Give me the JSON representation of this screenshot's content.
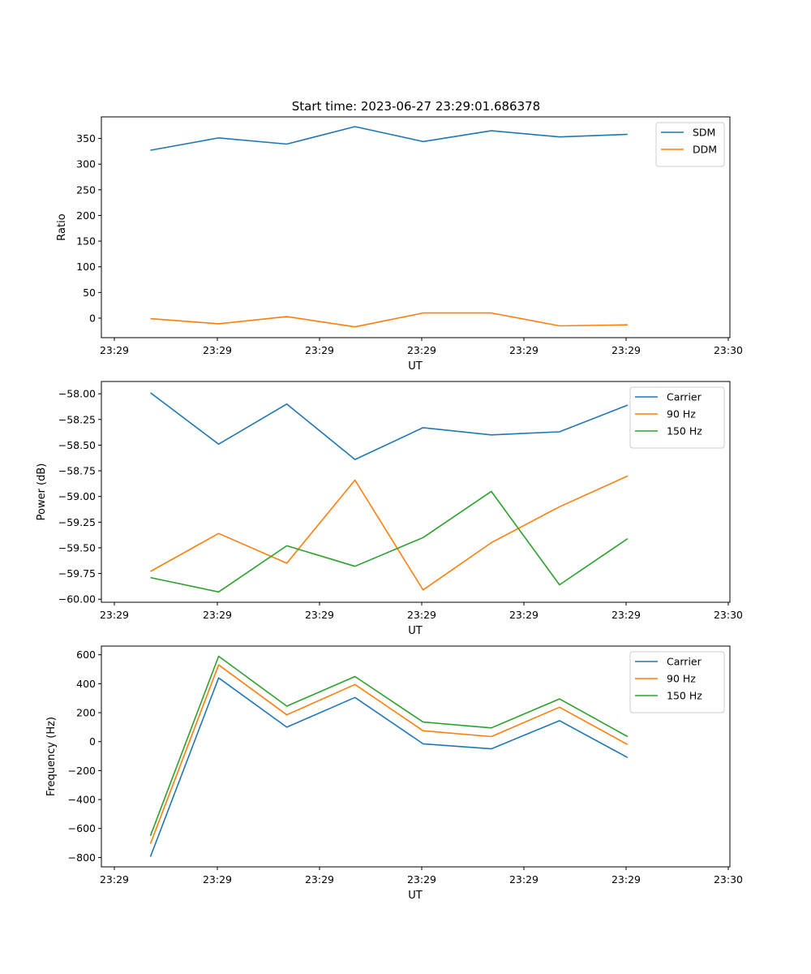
{
  "figure": {
    "title": "Start time: 2023-06-27 23:29:01.686378"
  },
  "chart_data": [
    {
      "type": "line",
      "xlabel": "UT",
      "ylabel": "Ratio",
      "x_tick_labels": [
        "23:29",
        "23:29",
        "23:29",
        "23:29",
        "23:29",
        "23:29",
        "23:30"
      ],
      "xlim": [
        -0.72,
        8.5
      ],
      "ylim": [
        -38,
        392
      ],
      "y_ticks": [
        0,
        50,
        100,
        150,
        200,
        250,
        300,
        350
      ],
      "y_tick_labels": [
        "0",
        "50",
        "100",
        "150",
        "200",
        "250",
        "300",
        "350"
      ],
      "legend_position": "top-right",
      "x": [
        0,
        1,
        2,
        3,
        4,
        5,
        6,
        7
      ],
      "series": [
        {
          "name": "SDM",
          "color": "#1f77b4",
          "values": [
            327,
            351,
            339,
            373,
            344,
            365,
            353,
            358
          ]
        },
        {
          "name": "DDM",
          "color": "#ff7f0e",
          "values": [
            -1,
            -11,
            3,
            -17,
            10,
            10,
            -15,
            -13
          ]
        }
      ]
    },
    {
      "type": "line",
      "xlabel": "UT",
      "ylabel": "Power (dB)",
      "x_tick_labels": [
        "23:29",
        "23:29",
        "23:29",
        "23:29",
        "23:29",
        "23:29",
        "23:30"
      ],
      "xlim": [
        -0.72,
        8.5
      ],
      "ylim": [
        -60.03,
        -57.88
      ],
      "y_ticks": [
        -60.0,
        -59.75,
        -59.5,
        -59.25,
        -59.0,
        -58.75,
        -58.5,
        -58.25,
        -58.0
      ],
      "y_tick_labels": [
        "−60.00",
        "−59.75",
        "−59.50",
        "−59.25",
        "−59.00",
        "−58.75",
        "−58.50",
        "−58.25",
        "−58.00"
      ],
      "legend_position": "top-right",
      "x": [
        0,
        1,
        2,
        3,
        4,
        5,
        6,
        7
      ],
      "series": [
        {
          "name": "Carrier",
          "color": "#1f77b4",
          "values": [
            -57.99,
            -58.49,
            -58.1,
            -58.64,
            -58.33,
            -58.4,
            -58.37,
            -58.11
          ]
        },
        {
          "name": "90 Hz",
          "color": "#ff7f0e",
          "values": [
            -59.73,
            -59.36,
            -59.65,
            -58.84,
            -59.91,
            -59.45,
            -59.1,
            -58.8
          ]
        },
        {
          "name": "150 Hz",
          "color": "#2ca02c",
          "values": [
            -59.79,
            -59.93,
            -59.48,
            -59.68,
            -59.4,
            -58.95,
            -59.86,
            -59.41
          ]
        }
      ]
    },
    {
      "type": "line",
      "xlabel": "UT",
      "ylabel": "Frequency (Hz)",
      "x_tick_labels": [
        "23:29",
        "23:29",
        "23:29",
        "23:29",
        "23:29",
        "23:29",
        "23:30"
      ],
      "xlim": [
        -0.72,
        8.5
      ],
      "ylim": [
        -865,
        660
      ],
      "y_ticks": [
        -800,
        -600,
        -400,
        -200,
        0,
        200,
        400,
        600
      ],
      "y_tick_labels": [
        "−800",
        "−600",
        "−400",
        "−200",
        "0",
        "200",
        "400",
        "600"
      ],
      "legend_position": "top-right",
      "x": [
        0,
        1,
        2,
        3,
        4,
        5,
        6,
        7
      ],
      "series": [
        {
          "name": "Carrier",
          "color": "#1f77b4",
          "values": [
            -795,
            440,
            100,
            305,
            -15,
            -50,
            145,
            -110
          ]
        },
        {
          "name": "90 Hz",
          "color": "#ff7f0e",
          "values": [
            -705,
            530,
            185,
            395,
            75,
            35,
            238,
            -20
          ]
        },
        {
          "name": "150 Hz",
          "color": "#2ca02c",
          "values": [
            -650,
            590,
            245,
            450,
            135,
            95,
            295,
            35
          ]
        }
      ]
    }
  ]
}
